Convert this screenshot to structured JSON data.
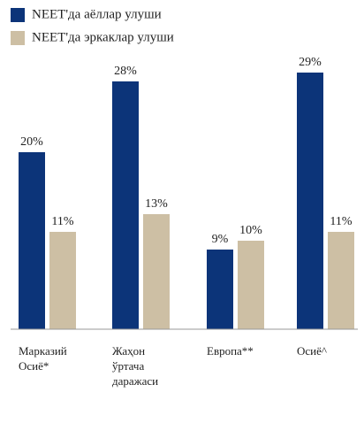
{
  "chart_data": {
    "type": "bar",
    "categories": [
      "Марказий Осиё*",
      "Жаҳон ўртача даражаси",
      "Европа**",
      "Осиё^"
    ],
    "series": [
      {
        "name": "NEET'да аёллар улуши",
        "color": "#0c3479",
        "values": [
          20,
          28,
          9,
          29
        ],
        "value_labels": [
          "20%",
          "28%",
          "9%",
          "29%"
        ]
      },
      {
        "name": "NEET'да эркаклар улуши",
        "color": "#cdbfa4",
        "values": [
          11,
          13,
          10,
          11
        ],
        "value_labels": [
          "11%",
          "13%",
          "10%",
          "11%"
        ]
      }
    ],
    "legend": "top-left"
  }
}
